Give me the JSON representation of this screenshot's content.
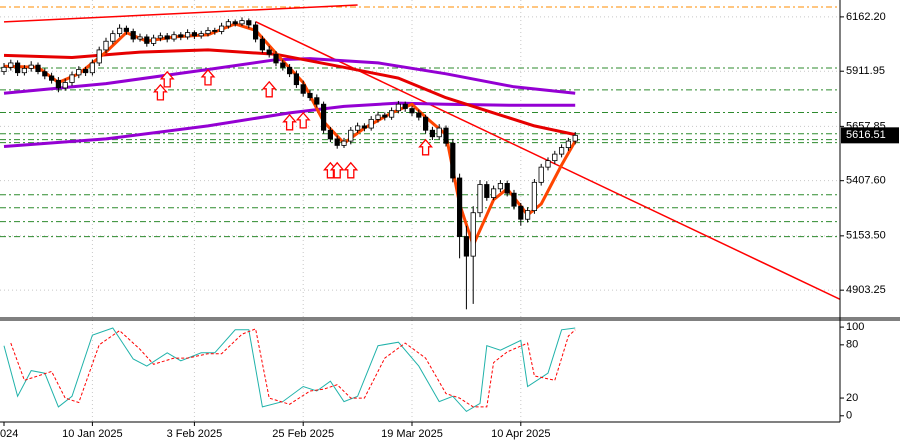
{
  "chart_data": [
    {
      "type": "candlestick",
      "categories": [
        "024",
        null,
        null,
        null,
        null,
        null,
        null,
        null,
        null,
        null,
        null,
        null,
        null,
        "10 Jan 2025",
        null,
        null,
        null,
        null,
        null,
        null,
        null,
        null,
        null,
        null,
        null,
        null,
        null,
        null,
        "3 Feb 2025",
        null,
        null,
        null,
        null,
        null,
        null,
        null,
        null,
        null,
        null,
        null,
        null,
        null,
        null,
        null,
        "25 Feb 2025",
        null,
        null,
        null,
        null,
        null,
        null,
        null,
        null,
        null,
        null,
        null,
        null,
        null,
        null,
        null,
        "19 Mar 2025",
        null,
        null,
        null,
        null,
        null,
        null,
        null,
        null,
        null,
        null,
        null,
        null,
        null,
        null,
        null,
        "10 Apr 2025",
        null,
        null,
        null,
        null,
        null,
        null,
        null,
        null
      ],
      "open": [
        5910,
        5930,
        5950,
        5905,
        5925,
        5940,
        5910,
        5890,
        5870,
        5835,
        5860,
        5895,
        5920,
        5905,
        5950,
        6010,
        6050,
        6085,
        6110,
        6095,
        6060,
        6070,
        6040,
        6065,
        6075,
        6060,
        6080,
        6070,
        6090,
        6075,
        6085,
        6100,
        6095,
        6120,
        6140,
        6130,
        6145,
        6125,
        6060,
        6010,
        5990,
        5950,
        5930,
        5900,
        5850,
        5810,
        5790,
        5760,
        5640,
        5600,
        5570,
        5590,
        5640,
        5660,
        5650,
        5690,
        5710,
        5700,
        5730,
        5760,
        5740,
        5720,
        5700,
        5640,
        5610,
        5650,
        5580,
        5420,
        5150,
        5060,
        5260,
        5390,
        5330,
        5370,
        5395,
        5350,
        5290,
        5230,
        5270,
        5400,
        5470,
        5500,
        5530,
        5560,
        5590
      ],
      "high": [
        5950,
        5965,
        5962,
        5940,
        5958,
        5952,
        5925,
        5905,
        5885,
        5878,
        5910,
        5935,
        5932,
        5966,
        6025,
        6066,
        6100,
        6128,
        6122,
        6108,
        6085,
        6082,
        6080,
        6090,
        6088,
        6095,
        6092,
        6105,
        6100,
        6098,
        6115,
        6112,
        6135,
        6152,
        6150,
        6160,
        6155,
        6140,
        6075,
        6028,
        6005,
        5965,
        5945,
        5915,
        5868,
        5825,
        5805,
        5772,
        5655,
        5615,
        5605,
        5655,
        5675,
        5672,
        5705,
        5725,
        5722,
        5745,
        5775,
        5772,
        5752,
        5735,
        5712,
        5655,
        5668,
        5662,
        5600,
        5440,
        5200,
        5290,
        5410,
        5405,
        5385,
        5410,
        5408,
        5365,
        5305,
        5285,
        5415,
        5485,
        5515,
        5545,
        5575,
        5605,
        5632
      ],
      "low": [
        5895,
        5915,
        5890,
        5892,
        5910,
        5898,
        5875,
        5855,
        5815,
        5822,
        5845,
        5880,
        5890,
        5892,
        5936,
        5995,
        6036,
        6070,
        6080,
        6045,
        6048,
        6025,
        6028,
        6050,
        6045,
        6048,
        6055,
        6058,
        6060,
        6062,
        6072,
        6080,
        6082,
        6108,
        6118,
        6120,
        6110,
        6045,
        5995,
        5975,
        5935,
        5915,
        5885,
        5835,
        5795,
        5775,
        5745,
        5625,
        5585,
        5555,
        5558,
        5575,
        5628,
        5635,
        5638,
        5675,
        5685,
        5688,
        5718,
        5725,
        5705,
        5685,
        5625,
        5595,
        5598,
        5565,
        5400,
        5050,
        4815,
        4840,
        5240,
        5315,
        5318,
        5355,
        5335,
        5275,
        5200,
        5215,
        5255,
        5385,
        5455,
        5485,
        5515,
        5545,
        5575
      ],
      "close": [
        5930,
        5950,
        5905,
        5925,
        5940,
        5910,
        5890,
        5870,
        5835,
        5860,
        5895,
        5920,
        5905,
        5950,
        6010,
        6050,
        6085,
        6110,
        6095,
        6060,
        6070,
        6040,
        6065,
        6075,
        6060,
        6080,
        6070,
        6090,
        6075,
        6085,
        6100,
        6095,
        6120,
        6140,
        6130,
        6145,
        6125,
        6060,
        6010,
        5990,
        5950,
        5930,
        5900,
        5850,
        5810,
        5790,
        5760,
        5640,
        5600,
        5570,
        5590,
        5640,
        5660,
        5650,
        5690,
        5710,
        5700,
        5730,
        5760,
        5740,
        5720,
        5700,
        5640,
        5610,
        5650,
        5580,
        5420,
        5150,
        5060,
        5260,
        5390,
        5330,
        5370,
        5395,
        5350,
        5290,
        5230,
        5270,
        5400,
        5470,
        5500,
        5530,
        5560,
        5590,
        5616.51
      ],
      "up_color": "#ffffff",
      "down_color": "#000000",
      "ylim": [
        4775,
        6240
      ],
      "yticks": [
        {
          "value": 6162.2,
          "label": "6162.20"
        },
        5911.95,
        5657.85,
        {
          "value": 5407.6,
          "label": "5407.60"
        },
        {
          "value": 5153.5,
          "label": "5153.50"
        },
        4903.25
      ],
      "grid": true,
      "last_price": 5616.51,
      "levels": [
        5927,
        5826,
        5722,
        5624,
        5597,
        5583,
        5343,
        5283,
        5219,
        5150
      ],
      "level_color": "#2e8b2e",
      "top_level": 6208,
      "top_level_color": "#ff8c00",
      "lines": [
        {
          "color": "#9400d3",
          "x": [
            0,
            15,
            30,
            40,
            45,
            55,
            65,
            75,
            84
          ],
          "values": [
            5810,
            5855,
            5920,
            5965,
            5970,
            5950,
            5900,
            5840,
            5810
          ]
        },
        {
          "color": "#9400d3",
          "x": [
            0,
            15,
            30,
            42,
            50,
            58,
            65,
            75,
            84
          ],
          "values": [
            5565,
            5600,
            5660,
            5720,
            5750,
            5765,
            5760,
            5755,
            5755
          ]
        },
        {
          "color": "#e60000",
          "x": [
            0,
            10,
            20,
            30,
            40,
            50,
            58,
            65,
            72,
            78,
            84
          ],
          "values": [
            5985,
            5975,
            6000,
            6010,
            5990,
            5930,
            5880,
            5790,
            5720,
            5660,
            5620
          ]
        },
        {
          "color": "#ff4500",
          "x": [
            0,
            5,
            8,
            11,
            15,
            18,
            21,
            25,
            30,
            34,
            37,
            41,
            44,
            47,
            50,
            53,
            57,
            60,
            62,
            65,
            67,
            69,
            72,
            74,
            77,
            79,
            82,
            84
          ],
          "values": [
            5935,
            5930,
            5860,
            5900,
            6000,
            6090,
            6050,
            6070,
            6080,
            6130,
            6100,
            5960,
            5860,
            5680,
            5580,
            5650,
            5720,
            5760,
            5700,
            5620,
            5300,
            5110,
            5320,
            5370,
            5250,
            5300,
            5480,
            5590
          ]
        }
      ],
      "trendlines": [
        {
          "color": "#ff0000",
          "x": [
            37,
            123
          ],
          "values": [
            6140,
            4860
          ]
        },
        {
          "color": "#ff0000",
          "x": [
            0,
            52
          ],
          "values": [
            6139,
            6217
          ]
        }
      ],
      "signals": {
        "color": "#ff0000",
        "x": [
          23,
          24,
          30,
          39,
          42,
          44,
          48,
          49,
          51,
          62
        ],
        "values": [
          5849,
          5909,
          5918,
          5863,
          5711,
          5720,
          5490,
          5490,
          5490,
          5596
        ]
      }
    },
    {
      "type": "line",
      "ylim": [
        -7,
        108
      ],
      "yticks": [
        100,
        80,
        20,
        0
      ],
      "series": [
        {
          "color": "#20b2aa",
          "dashed": false,
          "x": [
            0,
            2,
            4,
            6,
            8,
            10,
            13,
            16,
            19,
            21,
            24,
            26,
            29,
            31,
            34,
            36,
            38,
            41,
            44,
            46,
            48,
            50,
            52,
            55,
            58,
            61,
            64,
            66,
            68,
            70,
            71,
            73,
            76,
            77,
            80,
            82,
            84
          ],
          "values": [
            79,
            22,
            51,
            48,
            10,
            22,
            91,
            99,
            64,
            56,
            71,
            62,
            71,
            71,
            97,
            97,
            10,
            16,
            33,
            28,
            39,
            16,
            22,
            79,
            83,
            56,
            16,
            22,
            5,
            14,
            79,
            74,
            85,
            33,
            48,
            97,
            99
          ]
        },
        {
          "color": "#ff0000",
          "dashed": true,
          "x": [
            1,
            3,
            5,
            7,
            9,
            11,
            14,
            17,
            20,
            22,
            25,
            27,
            30,
            32,
            35,
            37,
            39,
            42,
            45,
            47,
            49,
            51,
            53,
            56,
            59,
            62,
            65,
            67,
            69,
            71,
            72,
            74,
            77,
            78,
            81,
            83,
            84
          ],
          "values": [
            82,
            40,
            45,
            50,
            20,
            15,
            80,
            96,
            75,
            58,
            65,
            65,
            70,
            70,
            92,
            98,
            20,
            13,
            28,
            30,
            35,
            20,
            20,
            65,
            82,
            65,
            25,
            20,
            10,
            10,
            60,
            72,
            82,
            45,
            40,
            90,
            97
          ]
        }
      ]
    }
  ]
}
